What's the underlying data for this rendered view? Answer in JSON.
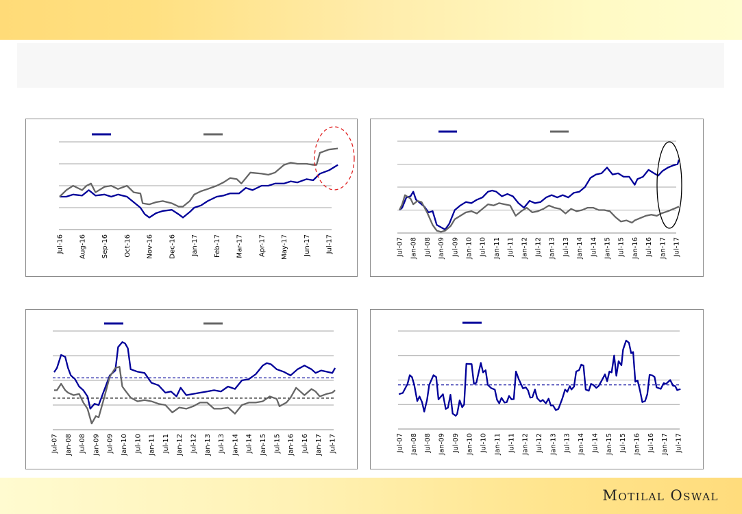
{
  "brand": {
    "logo_text": "Motilal Oswal"
  },
  "colors": {
    "blue": "#000099",
    "gray": "#666666",
    "grid": "#999999",
    "highlight_red": "#e02020",
    "highlight_black": "#000000"
  },
  "chart_data": [
    {
      "type": "line",
      "title": "",
      "x_unit": "months since Jul-16",
      "tick_labels": [
        "Jul-16",
        "Aug-16",
        "Sep-16",
        "Oct-16",
        "Nov-16",
        "Dec-16",
        "Jan-17",
        "Feb-17",
        "Mar-17",
        "Apr-17",
        "May-17",
        "Jun-17",
        "Jul-17"
      ],
      "ylim": [
        0,
        4
      ],
      "gridlines": 5,
      "grid": true,
      "annotation": {
        "shape": "ellipse",
        "style": "dashed",
        "color": "#e02020",
        "target": "Jul-17 end"
      },
      "series": [
        {
          "color": "#000099",
          "x": [
            0,
            0.3,
            0.6,
            1,
            1.3,
            1.6,
            2,
            2.3,
            2.6,
            3,
            3.3,
            3.6,
            3.8,
            4,
            4.3,
            4.6,
            5,
            5.3,
            5.5,
            5.8,
            6,
            6.3,
            6.6,
            7,
            7.3,
            7.6,
            8,
            8.3,
            8.6,
            9,
            9.3,
            9.6,
            10,
            10.3,
            10.6,
            11,
            11.3,
            11.6,
            12,
            12.4
          ],
          "y": [
            1.5,
            1.5,
            1.6,
            1.55,
            1.8,
            1.55,
            1.6,
            1.5,
            1.6,
            1.5,
            1.25,
            1.0,
            0.7,
            0.55,
            0.75,
            0.85,
            0.9,
            0.7,
            0.55,
            0.8,
            1.0,
            1.1,
            1.3,
            1.5,
            1.55,
            1.65,
            1.65,
            1.9,
            1.8,
            2.0,
            2.0,
            2.1,
            2.1,
            2.2,
            2.15,
            2.3,
            2.25,
            2.55,
            2.7,
            2.95
          ]
        },
        {
          "color": "#666666",
          "x": [
            0,
            0.3,
            0.6,
            1,
            1.2,
            1.4,
            1.6,
            2,
            2.3,
            2.6,
            3,
            3.3,
            3.6,
            3.7,
            4,
            4.3,
            4.6,
            5,
            5.3,
            5.5,
            5.8,
            6,
            6.3,
            6.6,
            7,
            7.3,
            7.6,
            7.9,
            8.1,
            8.5,
            9,
            9.3,
            9.6,
            10,
            10.3,
            10.6,
            11,
            11.3,
            11.45,
            11.6,
            12,
            12.4
          ],
          "y": [
            1.5,
            1.8,
            2.0,
            1.8,
            2.0,
            2.1,
            1.7,
            1.95,
            2.0,
            1.85,
            2.0,
            1.7,
            1.65,
            1.2,
            1.15,
            1.25,
            1.3,
            1.2,
            1.05,
            1.05,
            1.3,
            1.6,
            1.75,
            1.85,
            2.0,
            2.15,
            2.35,
            2.3,
            2.1,
            2.6,
            2.55,
            2.5,
            2.6,
            2.95,
            3.05,
            3.0,
            3.0,
            2.95,
            2.95,
            3.5,
            3.65,
            3.7
          ]
        }
      ]
    },
    {
      "type": "line",
      "title": "",
      "x_unit": "year",
      "tick_labels": [
        "Jul-07",
        "Jan-08",
        "Jul-08",
        "Jan-09",
        "Jul-09",
        "Jan-10",
        "Jul-10",
        "Jan-11",
        "Jul-11",
        "Jan-12",
        "Jul-12",
        "Jan-13",
        "Jul-13",
        "Jan-14",
        "Jul-14",
        "Jan-15",
        "Jul-15",
        "Jan-16",
        "Jul-16",
        "Jan-17",
        "Jul-17"
      ],
      "ylim": [
        0,
        4
      ],
      "gridlines": 5,
      "grid": true,
      "annotation": {
        "shape": "ellipse",
        "style": "solid",
        "color": "#000000",
        "target": "2017 end"
      },
      "series": [
        {
          "color": "#000099",
          "x": [
            2007.5,
            2007.6,
            2007.75,
            2007.9,
            2008.0,
            2008.1,
            2008.25,
            2008.4,
            2008.55,
            2008.7,
            2008.85,
            2009.0,
            2009.15,
            2009.3,
            2009.5,
            2009.7,
            2009.9,
            2010.1,
            2010.3,
            2010.5,
            2010.7,
            2010.85,
            2011.0,
            2011.2,
            2011.4,
            2011.6,
            2011.8,
            2012.0,
            2012.2,
            2012.4,
            2012.6,
            2012.8,
            2013.0,
            2013.2,
            2013.4,
            2013.6,
            2013.8,
            2014.0,
            2014.2,
            2014.4,
            2014.6,
            2014.8,
            2015.0,
            2015.2,
            2015.4,
            2015.6,
            2015.8,
            2016.0,
            2016.1,
            2016.3,
            2016.5,
            2016.7,
            2016.85,
            2017.0,
            2017.2,
            2017.4,
            2017.55,
            2017.6
          ],
          "y": [
            1.0,
            1.1,
            1.55,
            1.6,
            1.8,
            1.45,
            1.3,
            1.15,
            0.9,
            0.95,
            0.35,
            0.25,
            0.15,
            0.4,
            1.0,
            1.2,
            1.35,
            1.3,
            1.45,
            1.55,
            1.8,
            1.85,
            1.8,
            1.6,
            1.7,
            1.6,
            1.3,
            1.1,
            1.4,
            1.3,
            1.35,
            1.55,
            1.65,
            1.55,
            1.65,
            1.55,
            1.75,
            1.8,
            2.0,
            2.4,
            2.55,
            2.6,
            2.85,
            2.55,
            2.6,
            2.45,
            2.45,
            2.1,
            2.35,
            2.45,
            2.75,
            2.6,
            2.5,
            2.7,
            2.85,
            2.95,
            3.0,
            3.2
          ]
        },
        {
          "color": "#666666",
          "x": [
            2007.5,
            2007.6,
            2007.7,
            2007.9,
            2008.0,
            2008.15,
            2008.3,
            2008.5,
            2008.7,
            2008.85,
            2009.0,
            2009.15,
            2009.35,
            2009.5,
            2009.7,
            2009.9,
            2010.1,
            2010.3,
            2010.5,
            2010.7,
            2010.9,
            2011.1,
            2011.3,
            2011.5,
            2011.7,
            2011.9,
            2012.1,
            2012.3,
            2012.5,
            2012.7,
            2012.9,
            2013.1,
            2013.3,
            2013.5,
            2013.7,
            2013.9,
            2014.1,
            2014.3,
            2014.5,
            2014.7,
            2014.9,
            2015.1,
            2015.3,
            2015.5,
            2015.7,
            2015.9,
            2016.0,
            2016.2,
            2016.4,
            2016.6,
            2016.8,
            2016.95,
            2017.2,
            2017.4,
            2017.6
          ],
          "y": [
            1.0,
            1.25,
            1.65,
            1.5,
            1.25,
            1.4,
            1.35,
            0.9,
            0.35,
            0.1,
            0.05,
            0.1,
            0.3,
            0.6,
            0.75,
            0.9,
            0.95,
            0.85,
            1.05,
            1.25,
            1.2,
            1.3,
            1.25,
            1.2,
            0.75,
            0.95,
            1.1,
            0.9,
            0.95,
            1.05,
            1.2,
            1.1,
            1.05,
            0.85,
            1.05,
            0.95,
            1.0,
            1.1,
            1.1,
            1.0,
            1.0,
            0.95,
            0.7,
            0.5,
            0.55,
            0.45,
            0.55,
            0.65,
            0.75,
            0.8,
            0.75,
            0.85,
            0.95,
            1.05,
            1.15
          ]
        }
      ]
    },
    {
      "type": "line",
      "title": "",
      "x_unit": "year",
      "tick_labels": [
        "Jul-07",
        "Jan-08",
        "Jul-08",
        "Jan-09",
        "Jul-09",
        "Jan-10",
        "Jul-10",
        "Jan-11",
        "Jul-11",
        "Jan-12",
        "Jul-12",
        "Jan-13",
        "Jul-13",
        "Jan-14",
        "Jul-14",
        "Jan-15",
        "Jul-15",
        "Jan-16",
        "Jul-16",
        "Jan-17",
        "Jul-17"
      ],
      "ylim": [
        0,
        4
      ],
      "gridlines": 5,
      "grid": true,
      "reference_lines": [
        {
          "value": 2.1,
          "color": "#000099",
          "style": "dashed"
        },
        {
          "value": 1.28,
          "color": "#000000",
          "style": "dashed"
        }
      ],
      "series": [
        {
          "color": "#000099",
          "x": [
            2007.5,
            2007.6,
            2007.75,
            2007.9,
            2008.0,
            2008.1,
            2008.25,
            2008.4,
            2008.55,
            2008.7,
            2008.8,
            2008.95,
            2009.1,
            2009.3,
            2009.5,
            2009.7,
            2009.8,
            2009.95,
            2010.05,
            2010.15,
            2010.25,
            2010.5,
            2010.75,
            2011.0,
            2011.25,
            2011.5,
            2011.7,
            2011.9,
            2012.05,
            2012.25,
            2012.5,
            2012.75,
            2013.0,
            2013.25,
            2013.5,
            2013.75,
            2014.0,
            2014.25,
            2014.5,
            2014.75,
            2015.0,
            2015.15,
            2015.3,
            2015.5,
            2015.75,
            2016.0,
            2016.25,
            2016.5,
            2016.75,
            2016.9,
            2017.1,
            2017.3,
            2017.5,
            2017.6
          ],
          "y": [
            2.33,
            2.5,
            3.03,
            2.95,
            2.5,
            2.2,
            2.05,
            1.75,
            1.6,
            1.35,
            0.85,
            1.05,
            1.0,
            1.6,
            2.2,
            2.4,
            3.35,
            3.55,
            3.5,
            3.3,
            2.45,
            2.35,
            2.3,
            1.9,
            1.8,
            1.5,
            1.55,
            1.35,
            1.7,
            1.4,
            1.45,
            1.5,
            1.55,
            1.6,
            1.55,
            1.75,
            1.65,
            2.0,
            2.05,
            2.25,
            2.6,
            2.7,
            2.65,
            2.45,
            2.35,
            2.2,
            2.45,
            2.6,
            2.45,
            2.3,
            2.4,
            2.35,
            2.3,
            2.5
          ]
        },
        {
          "color": "#666666",
          "x": [
            2007.5,
            2007.6,
            2007.75,
            2007.9,
            2008.0,
            2008.2,
            2008.4,
            2008.55,
            2008.7,
            2008.85,
            2009.0,
            2009.1,
            2009.3,
            2009.5,
            2009.7,
            2009.85,
            2009.95,
            2010.05,
            2010.25,
            2010.5,
            2010.75,
            2011.0,
            2011.25,
            2011.5,
            2011.75,
            2012.0,
            2012.25,
            2012.5,
            2012.75,
            2013.0,
            2013.25,
            2013.5,
            2013.75,
            2014.0,
            2014.25,
            2014.5,
            2014.75,
            2015.0,
            2015.25,
            2015.5,
            2015.6,
            2015.85,
            2016.0,
            2016.2,
            2016.35,
            2016.5,
            2016.75,
            2016.9,
            2017.05,
            2017.3,
            2017.5,
            2017.6
          ],
          "y": [
            1.6,
            1.6,
            1.86,
            1.6,
            1.5,
            1.4,
            1.45,
            1.1,
            0.85,
            0.25,
            0.55,
            0.5,
            1.3,
            2.15,
            2.5,
            2.55,
            1.75,
            1.6,
            1.3,
            1.15,
            1.2,
            1.15,
            1.05,
            1.0,
            0.7,
            0.9,
            0.85,
            0.95,
            1.1,
            1.1,
            0.85,
            0.85,
            0.9,
            0.65,
            1.0,
            1.1,
            1.1,
            1.15,
            1.35,
            1.25,
            0.95,
            1.1,
            1.3,
            1.7,
            1.55,
            1.4,
            1.65,
            1.55,
            1.35,
            1.45,
            1.5,
            1.6
          ]
        }
      ]
    },
    {
      "type": "line",
      "title": "",
      "x_unit": "year",
      "tick_labels": [
        "Jul-07",
        "Jan-08",
        "Jul-08",
        "Jan-09",
        "Jul-09",
        "Jan-10",
        "Jul-10",
        "Jan-11",
        "Jul-11",
        "Jan-12",
        "Jul-12",
        "Jan-13",
        "Jul-13",
        "Jan-14",
        "Jul-14",
        "Jan-15",
        "Jul-15",
        "Jan-16",
        "Jul-16",
        "Jan-17",
        "Jul-17"
      ],
      "ylim": [
        0,
        4
      ],
      "gridlines": 5,
      "grid": true,
      "reference_lines": [
        {
          "value": 1.8,
          "color": "#000099",
          "style": "dashed"
        }
      ],
      "series": [
        {
          "color": "#000099",
          "x": [
            2007.48,
            2007.62,
            2007.79,
            2007.87,
            2007.95,
            2008.03,
            2008.14,
            2008.22,
            2008.31,
            2008.39,
            2008.49,
            2008.57,
            2008.72,
            2008.82,
            2008.9,
            2009.06,
            2009.16,
            2009.24,
            2009.33,
            2009.41,
            2009.52,
            2009.57,
            2009.66,
            2009.75,
            2009.82,
            2009.9,
            2010.09,
            2010.17,
            2010.26,
            2010.42,
            2010.5,
            2010.59,
            2010.67,
            2010.79,
            2010.92,
            2011.0,
            2011.08,
            2011.16,
            2011.27,
            2011.35,
            2011.43,
            2011.52,
            2011.6,
            2011.68,
            2011.78,
            2011.93,
            2012.03,
            2012.11,
            2012.19,
            2012.27,
            2012.36,
            2012.44,
            2012.56,
            2012.64,
            2012.75,
            2012.85,
            2012.93,
            2013.01,
            2013.11,
            2013.2,
            2013.34,
            2013.44,
            2013.52,
            2013.61,
            2013.67,
            2013.76,
            2013.84,
            2013.94,
            2014.02,
            2014.1,
            2014.18,
            2014.29,
            2014.37,
            2014.45,
            2014.56,
            2014.64,
            2014.74,
            2014.87,
            2014.95,
            2015.03,
            2015.11,
            2015.2,
            2015.28,
            2015.36,
            2015.46,
            2015.52,
            2015.63,
            2015.73,
            2015.81,
            2015.88,
            2015.96,
            2016.04,
            2016.13,
            2016.21,
            2016.31,
            2016.39,
            2016.47,
            2016.57,
            2016.65,
            2016.72,
            2016.87,
            2016.98,
            2017.06,
            2017.21,
            2017.31,
            2017.39,
            2017.46,
            2017.58
          ],
          "y": [
            1.42,
            1.47,
            1.84,
            2.2,
            2.12,
            1.8,
            1.14,
            1.33,
            1.1,
            0.71,
            1.19,
            1.8,
            2.2,
            2.12,
            1.21,
            1.42,
            0.82,
            0.87,
            1.4,
            0.63,
            0.54,
            0.61,
            1.17,
            0.89,
            1.0,
            2.66,
            2.65,
            1.84,
            1.89,
            2.7,
            2.31,
            2.4,
            1.8,
            1.67,
            1.61,
            1.19,
            1.05,
            1.27,
            1.08,
            1.1,
            1.35,
            1.21,
            1.22,
            2.35,
            2.03,
            1.66,
            1.7,
            1.58,
            1.28,
            1.3,
            1.61,
            1.26,
            1.12,
            1.19,
            1.05,
            1.24,
            0.96,
            0.96,
            0.77,
            0.82,
            1.24,
            1.61,
            1.52,
            1.75,
            1.61,
            1.73,
            2.35,
            2.4,
            2.63,
            2.59,
            1.61,
            1.56,
            1.84,
            1.8,
            1.68,
            1.75,
            1.95,
            2.23,
            1.95,
            2.35,
            2.31,
            3.0,
            2.17,
            2.77,
            2.6,
            3.24,
            3.61,
            3.52,
            3.1,
            3.14,
            1.93,
            1.98,
            1.56,
            1.1,
            1.14,
            1.42,
            2.21,
            2.19,
            2.12,
            1.7,
            1.64,
            1.87,
            1.84,
            2.0,
            1.77,
            1.75,
            1.59,
            1.63
          ]
        }
      ]
    }
  ]
}
